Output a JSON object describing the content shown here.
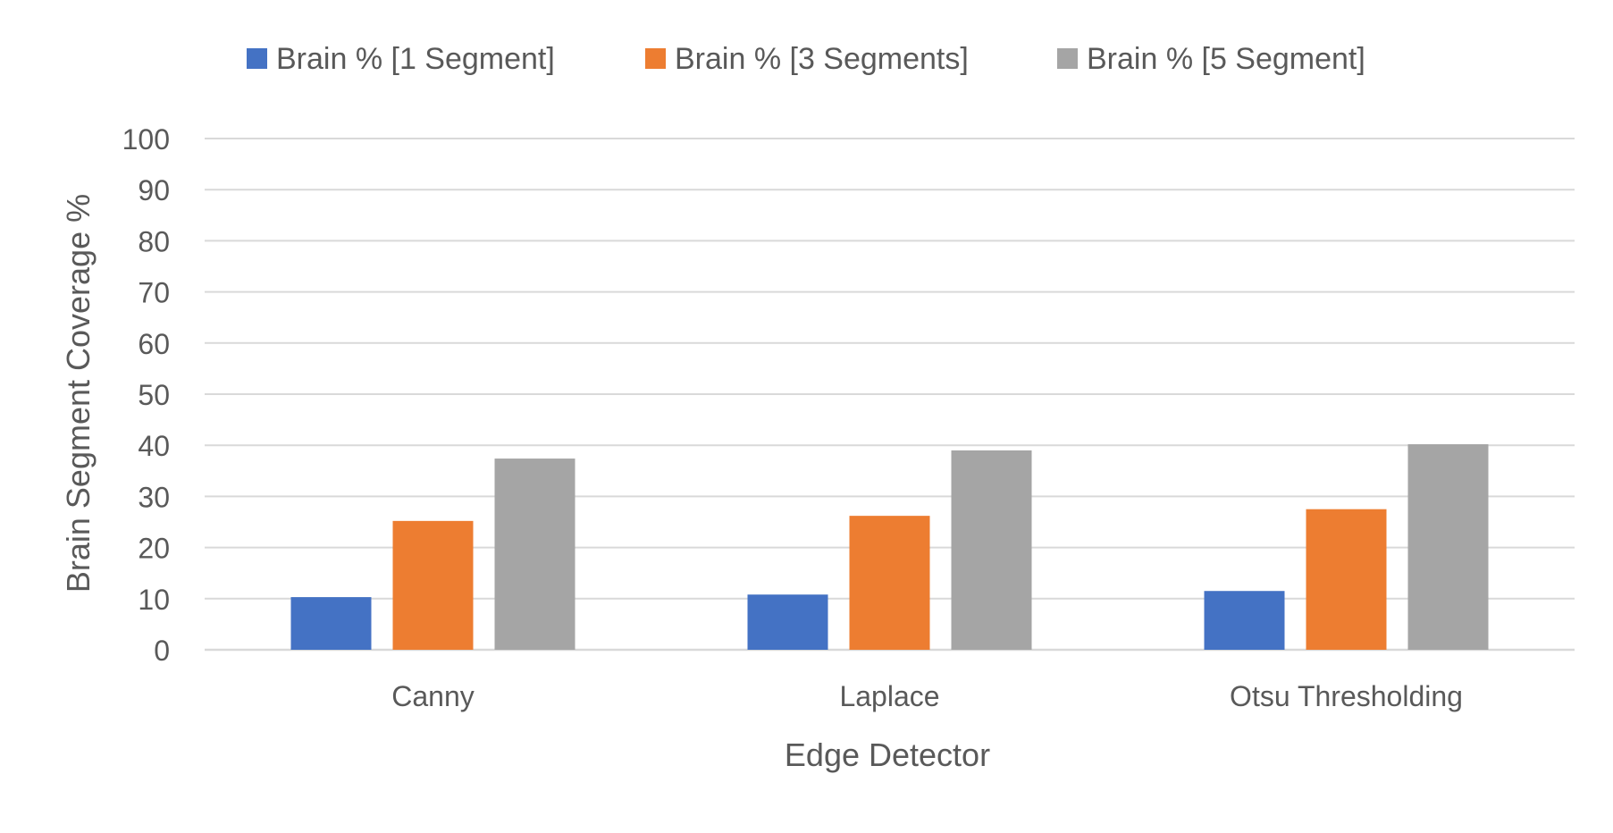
{
  "chart_data": {
    "type": "bar",
    "title": "",
    "xlabel": "Edge Detector",
    "ylabel": "Brain Segment Coverage %",
    "categories": [
      "Canny",
      "Laplace",
      "Otsu Thresholding"
    ],
    "series": [
      {
        "name": "Brain % [1 Segment]",
        "color": "#4472C4",
        "values": [
          10.3,
          10.8,
          11.5
        ]
      },
      {
        "name": "Brain % [3 Segments]",
        "color": "#ED7D31",
        "values": [
          25.2,
          26.2,
          27.5
        ]
      },
      {
        "name": "Brain % [5 Segment]",
        "color": "#A5A5A5",
        "values": [
          37.4,
          39.0,
          40.2
        ]
      }
    ],
    "ylim": [
      0,
      100
    ],
    "yticks": [
      "0",
      "10",
      "20",
      "30",
      "40",
      "50",
      "60",
      "70",
      "80",
      "90",
      "100"
    ],
    "grid": true,
    "legend_position": "top"
  }
}
